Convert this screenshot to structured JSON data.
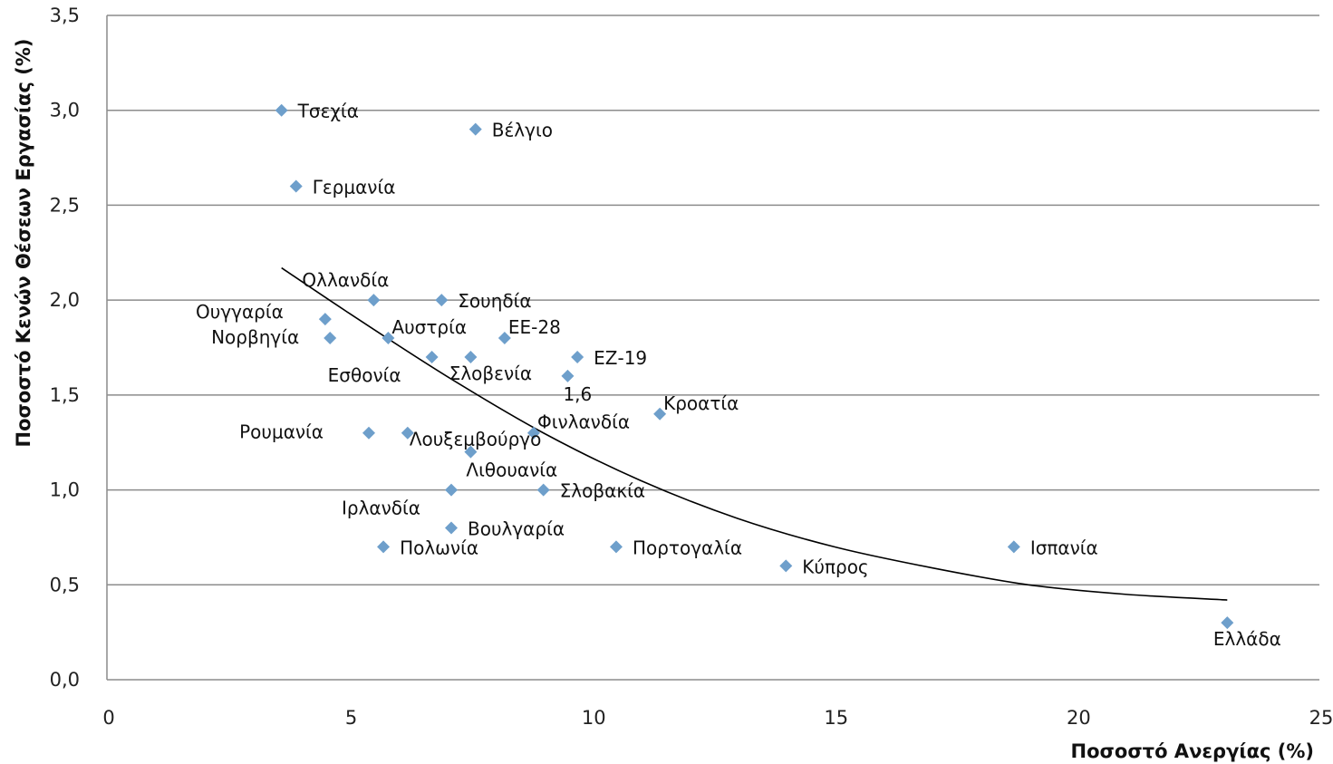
{
  "chart_data": {
    "type": "scatter",
    "xlabel": "Ποσοστό Ανεργίας (%)",
    "ylabel": "Ποσοστό Κενών Θέσεων Εργασίας (%)",
    "xlim": [
      0,
      25
    ],
    "ylim": [
      0,
      3.5
    ],
    "x_ticks": [
      {
        "value": 0,
        "label": "0"
      },
      {
        "value": 5,
        "label": "5"
      },
      {
        "value": 10,
        "label": "10"
      },
      {
        "value": 15,
        "label": "15"
      },
      {
        "value": 20,
        "label": "20"
      },
      {
        "value": 25,
        "label": "25"
      }
    ],
    "y_ticks": [
      {
        "value": 0,
        "label": "0,0"
      },
      {
        "value": 0.5,
        "label": "0,5"
      },
      {
        "value": 1.0,
        "label": "1,0"
      },
      {
        "value": 1.5,
        "label": "1,5"
      },
      {
        "value": 2.0,
        "label": "2,0"
      },
      {
        "value": 2.5,
        "label": "2,5"
      },
      {
        "value": 3.0,
        "label": "3,0"
      },
      {
        "value": 3.5,
        "label": "3,5"
      }
    ],
    "grid": "horizontal",
    "marker_color": "#6e9fcb",
    "trendline_color": "#000000",
    "points": [
      {
        "label": "Τσεχία",
        "x": 3.6,
        "y": 3.0,
        "label_pos": "right"
      },
      {
        "label": "Βέλγιο",
        "x": 7.6,
        "y": 2.9,
        "label_pos": "right"
      },
      {
        "label": "Γερμανία",
        "x": 3.9,
        "y": 2.6,
        "label_pos": "right"
      },
      {
        "label": "Ολλανδία",
        "x": 5.5,
        "y": 2.0,
        "label_pos": "above-left"
      },
      {
        "label": "Σουηδία",
        "x": 6.9,
        "y": 2.0,
        "label_pos": "right"
      },
      {
        "label": "Ουγγαρία",
        "x": 4.5,
        "y": 1.9,
        "label_pos": "left-above"
      },
      {
        "label": "Νορβηγία",
        "x": 4.6,
        "y": 1.8,
        "label_pos": "left"
      },
      {
        "label": "Αυστρία",
        "x": 5.8,
        "y": 1.8,
        "label_pos": "right-near"
      },
      {
        "label": "ΕΕ-28",
        "x": 8.2,
        "y": 1.8,
        "label_pos": "right-near"
      },
      {
        "label": "Εσθονία",
        "x": 6.7,
        "y": 1.7,
        "label_pos": "left-below"
      },
      {
        "label": "Σλοβενία",
        "x": 7.5,
        "y": 1.7,
        "label_pos": "below-center"
      },
      {
        "label": "ΕΖ-19",
        "x": 9.7,
        "y": 1.7,
        "label_pos": "right"
      },
      {
        "label": "1,6",
        "x": 9.5,
        "y": 1.6,
        "label_pos": "below-right"
      },
      {
        "label": "Κροατία",
        "x": 11.4,
        "y": 1.4,
        "label_pos": "right-near"
      },
      {
        "label": "Ρουμανία",
        "x": 5.4,
        "y": 1.3,
        "label_pos": "left-far"
      },
      {
        "label": "Λουξεμβούργο",
        "x": 6.2,
        "y": 1.3,
        "label_pos": "right-below"
      },
      {
        "label": "Φινλανδία",
        "x": 8.8,
        "y": 1.3,
        "label_pos": "right-near"
      },
      {
        "label": "Λιθουανία",
        "x": 7.5,
        "y": 1.2,
        "label_pos": "below-right"
      },
      {
        "label": "Ιρλανδία",
        "x": 7.1,
        "y": 1.0,
        "label_pos": "left-below"
      },
      {
        "label": "Σλοβακία",
        "x": 9.0,
        "y": 1.0,
        "label_pos": "right"
      },
      {
        "label": "Βουλγαρία",
        "x": 7.1,
        "y": 0.8,
        "label_pos": "right"
      },
      {
        "label": "Πολωνία",
        "x": 5.7,
        "y": 0.7,
        "label_pos": "right"
      },
      {
        "label": "Πορτογαλία",
        "x": 10.5,
        "y": 0.7,
        "label_pos": "right"
      },
      {
        "label": "Κύπρος",
        "x": 14.0,
        "y": 0.6,
        "label_pos": "right"
      },
      {
        "label": "Ισπανία",
        "x": 18.7,
        "y": 0.7,
        "label_pos": "right"
      },
      {
        "label": "Ελλάδα",
        "x": 23.1,
        "y": 0.3,
        "label_pos": "below-center"
      }
    ],
    "trendline": {
      "type": "polynomial",
      "x_range": [
        3.6,
        23.1
      ],
      "points": [
        [
          3.6,
          2.17
        ],
        [
          5.0,
          1.93
        ],
        [
          7.0,
          1.6
        ],
        [
          9.0,
          1.3
        ],
        [
          11.0,
          1.05
        ],
        [
          13.0,
          0.85
        ],
        [
          15.0,
          0.7
        ],
        [
          17.0,
          0.59
        ],
        [
          19.0,
          0.5
        ],
        [
          21.0,
          0.45
        ],
        [
          23.1,
          0.42
        ]
      ]
    }
  }
}
